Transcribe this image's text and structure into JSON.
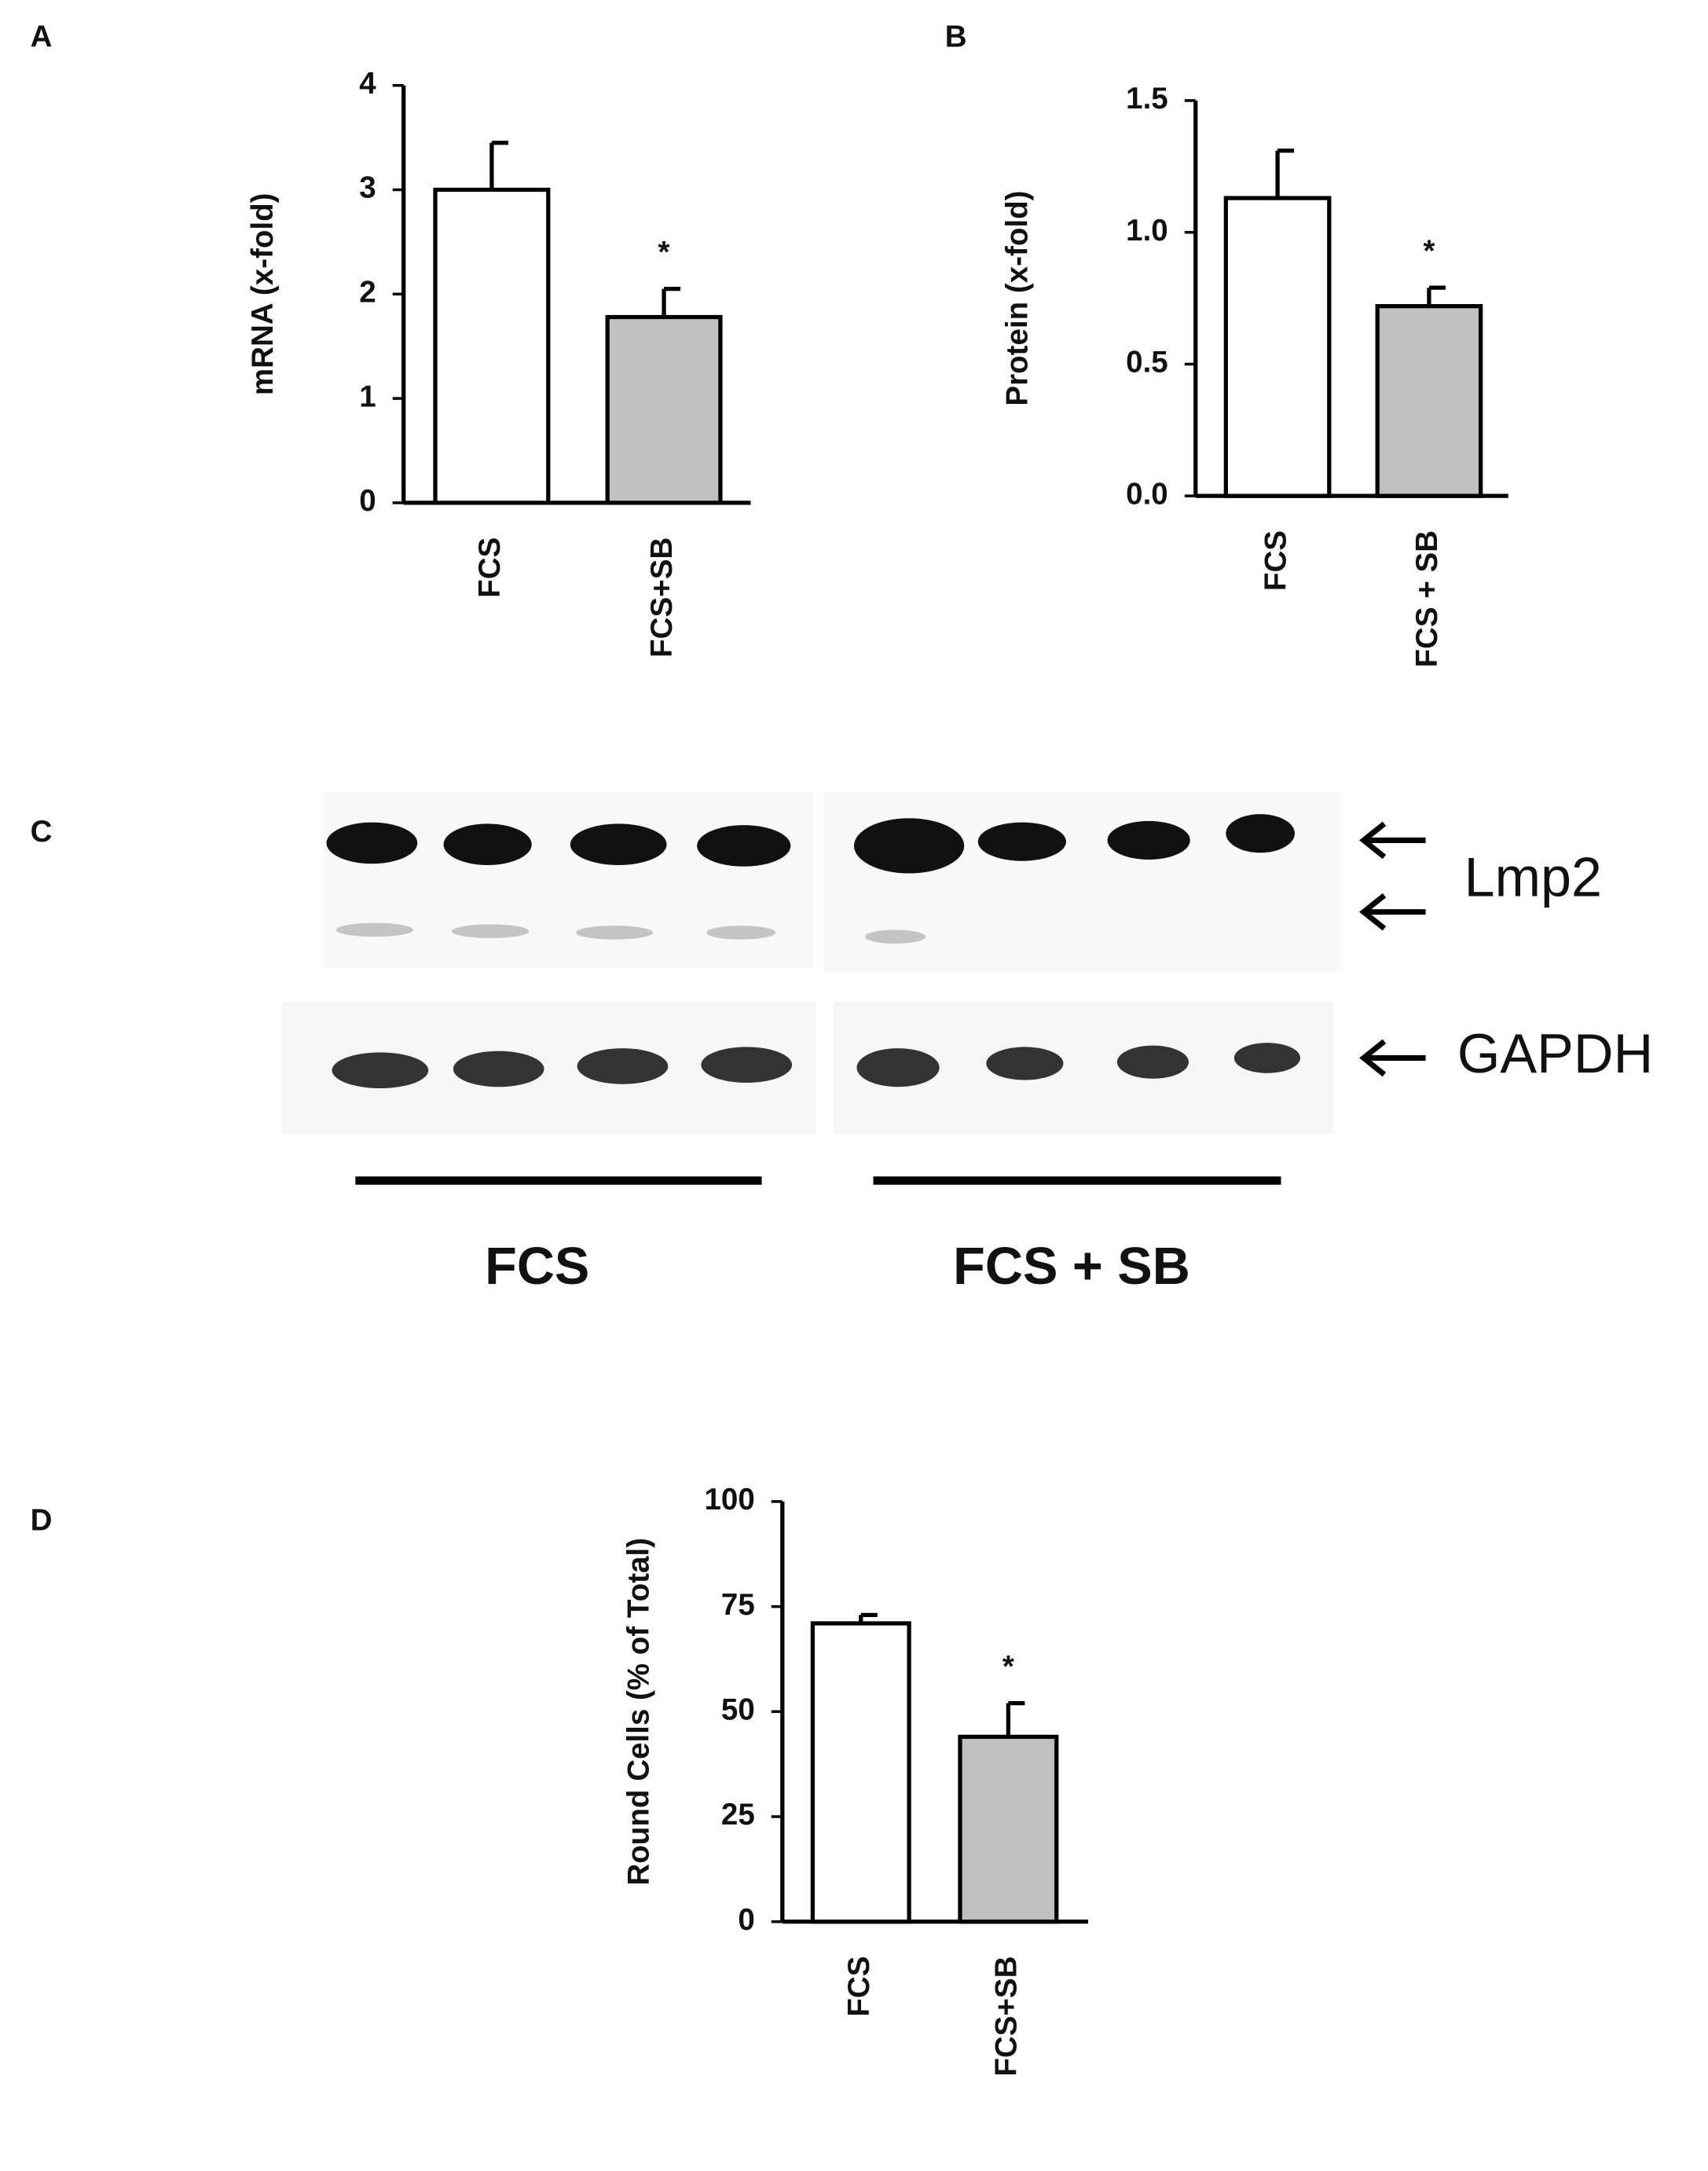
{
  "chart_data": [
    {
      "type": "bar",
      "panel": "A",
      "ylabel": "mRNA (x-fold)",
      "categories": [
        "FCS",
        "FCS+SB"
      ],
      "values": [
        3.0,
        1.78
      ],
      "errors": [
        0.45,
        0.27
      ],
      "colors": [
        "#ffffff",
        "#c0c0c0"
      ],
      "ylim": [
        0,
        4
      ],
      "yticks": [
        0,
        1,
        2,
        3,
        4
      ],
      "annotations": [
        "*"
      ]
    },
    {
      "type": "bar",
      "panel": "B",
      "ylabel": "Protein (x-fold)",
      "categories": [
        "FCS",
        "FCS + SB"
      ],
      "values": [
        1.13,
        0.72
      ],
      "errors": [
        0.18,
        0.07
      ],
      "colors": [
        "#ffffff",
        "#c0c0c0"
      ],
      "ylim": [
        0,
        1.5
      ],
      "yticks": [
        {
          "value": 0,
          "label": "0.0"
        },
        0.5,
        {
          "value": 1,
          "label": "1.0"
        },
        1.5
      ],
      "annotations": [
        "*"
      ]
    },
    {
      "type": "bar",
      "panel": "D",
      "ylabel": "Round Cells (% of Total)",
      "categories": [
        "FCS",
        "FCS+SB"
      ],
      "values": [
        71,
        44
      ],
      "errors": [
        2,
        8
      ],
      "colors": [
        "#ffffff",
        "#c0c0c0"
      ],
      "ylim": [
        0,
        100
      ],
      "yticks": [
        0,
        25,
        50,
        75,
        100
      ],
      "annotations": [
        "*"
      ]
    }
  ],
  "blot": {
    "panel": "C",
    "bands": [
      "Lmp2",
      "GAPDH"
    ],
    "groups": [
      "FCS",
      "FCS + SB"
    ]
  }
}
